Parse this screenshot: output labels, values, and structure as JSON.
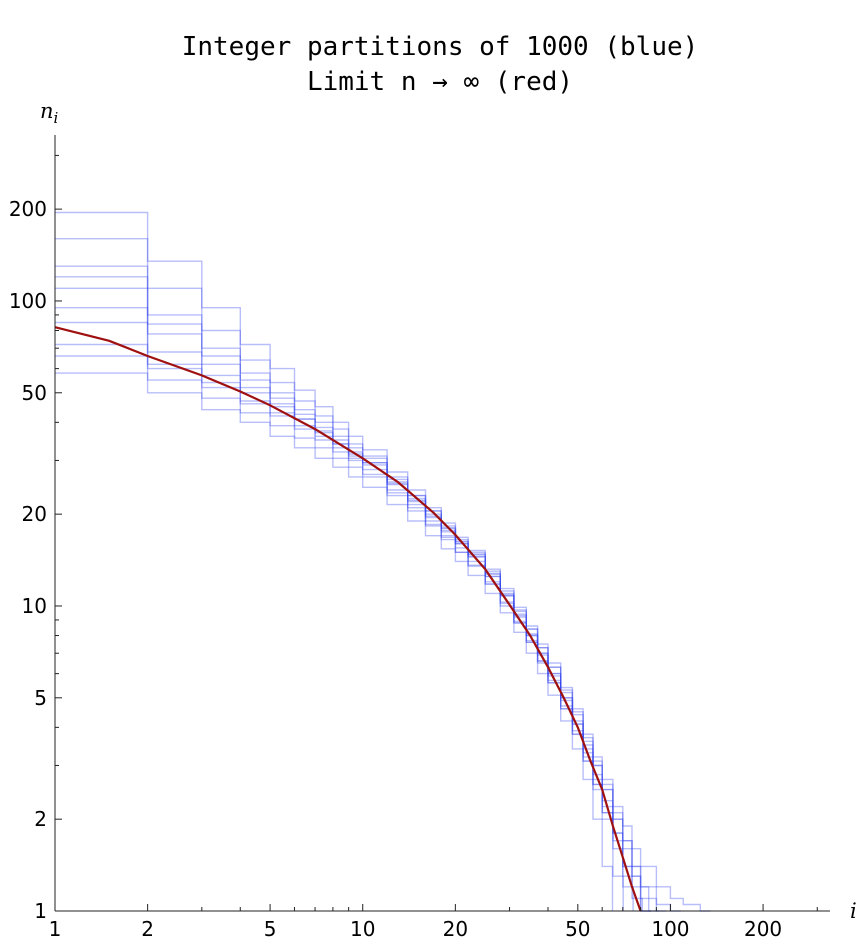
{
  "chart_data": {
    "type": "line",
    "title_lines": [
      "Integer partitions of 1000 (blue)",
      "Limit n → ∞ (red)"
    ],
    "xlabel": "i",
    "ylabel_base": "n",
    "ylabel_sub": "i",
    "x_scale": "log",
    "y_scale": "log",
    "xlim": [
      1,
      330
    ],
    "ylim": [
      1,
      350
    ],
    "x_ticks": [
      1,
      2,
      5,
      10,
      20,
      50,
      100,
      200
    ],
    "x_tick_labels": [
      "1",
      "2",
      "5",
      "10",
      "20",
      "50",
      "100",
      "200"
    ],
    "y_ticks": [
      1,
      2,
      5,
      10,
      20,
      50,
      100,
      200
    ],
    "y_tick_labels": [
      "1",
      "2",
      "5",
      "10",
      "20",
      "50",
      "100",
      "200"
    ],
    "limit_curve": {
      "color": "#a01010",
      "x": [
        1,
        1.5,
        2,
        3,
        4,
        5,
        7,
        10,
        13,
        17,
        20,
        25,
        30,
        35,
        40,
        45,
        50,
        55,
        60,
        65,
        70,
        75,
        80
      ],
      "y": [
        82,
        74,
        66,
        57,
        50.5,
        45.5,
        38,
        30.5,
        25.5,
        20.2,
        17.1,
        13.2,
        10.1,
        8.0,
        6.3,
        5.0,
        4.0,
        3.1,
        2.5,
        1.9,
        1.5,
        1.2,
        1.0
      ]
    },
    "sample_series_color": "#3344ee",
    "sample_series": [
      {
        "x": [
          1,
          2,
          3,
          4,
          5,
          6,
          7,
          8,
          9,
          10,
          12,
          14,
          16,
          18,
          20,
          22,
          25,
          28,
          31,
          34,
          37,
          40,
          44,
          48,
          52,
          56,
          60,
          65,
          70,
          75,
          80,
          85
        ],
        "y": [
          95,
          68,
          57,
          50,
          45,
          41,
          37,
          34,
          31,
          29,
          25,
          22,
          19.5,
          17.5,
          16,
          14.5,
          12.5,
          10.8,
          9.2,
          8,
          7,
          6,
          5,
          4.2,
          3.5,
          3,
          2.5,
          2,
          1.6,
          1.3,
          1.1,
          1
        ]
      },
      {
        "x": [
          1,
          2,
          3,
          4,
          5,
          6,
          7,
          8,
          9,
          10,
          12,
          14,
          16,
          18,
          20,
          22,
          25,
          28,
          31,
          34,
          37,
          40,
          44,
          48,
          52,
          56,
          60,
          65,
          70
        ],
        "y": [
          72,
          60,
          52,
          46,
          42,
          38,
          35,
          32,
          30,
          27,
          23.5,
          21,
          18.5,
          16.8,
          15,
          13.5,
          11.8,
          10,
          8.8,
          7.6,
          6.5,
          5.6,
          4.6,
          3.8,
          3.1,
          2.6,
          2.1,
          1.6,
          1.2
        ]
      },
      {
        "x": [
          1,
          2,
          3,
          4,
          5,
          6,
          7,
          8,
          9,
          10,
          12,
          14,
          16,
          18,
          20,
          22,
          25,
          28,
          31,
          34,
          37,
          40,
          44,
          48,
          52,
          56,
          60,
          65,
          70,
          75,
          80,
          90,
          100
        ],
        "y": [
          160,
          110,
          80,
          64,
          54,
          47,
          42,
          38,
          34,
          31,
          26.5,
          23,
          20.5,
          18,
          16.3,
          14.8,
          12.8,
          11,
          9.6,
          8.4,
          7.3,
          6.3,
          5.3,
          4.5,
          3.7,
          3.1,
          2.6,
          2.1,
          1.7,
          1.4,
          1.2,
          1.05,
          1
        ]
      },
      {
        "x": [
          1,
          2,
          3,
          4,
          5,
          6,
          7,
          8,
          9,
          10,
          12,
          14,
          16,
          18,
          20,
          22,
          25,
          28,
          31,
          34,
          37,
          40,
          44,
          48,
          52,
          56,
          60
        ],
        "y": [
          58,
          50,
          44,
          40,
          36,
          33,
          30.5,
          28.5,
          26.5,
          24.5,
          21.5,
          19,
          17,
          15.4,
          14,
          12.6,
          11,
          9.5,
          8.2,
          7,
          6,
          5.1,
          4.2,
          3.4,
          2.7,
          2,
          1.4
        ]
      },
      {
        "x": [
          1,
          2,
          3,
          4,
          5,
          6,
          7,
          8,
          9,
          10,
          12,
          14,
          16,
          18,
          20,
          22,
          25,
          28,
          31,
          34,
          37,
          40,
          44,
          48,
          52,
          56,
          60,
          65,
          70,
          75,
          80,
          90,
          100,
          110,
          125
        ],
        "y": [
          195,
          135,
          95,
          72,
          60,
          51,
          45,
          40,
          36,
          32.5,
          27.5,
          24,
          21,
          18.7,
          16.8,
          15.2,
          13.2,
          11.4,
          9.9,
          8.6,
          7.5,
          6.5,
          5.4,
          4.6,
          3.8,
          3.2,
          2.7,
          2.2,
          1.9,
          1.6,
          1.4,
          1.2,
          1.1,
          1.05,
          1
        ]
      },
      {
        "x": [
          1,
          2,
          3,
          4,
          5,
          6,
          7,
          8,
          9,
          10,
          12,
          14,
          16,
          18,
          20,
          22,
          25,
          28,
          31,
          34,
          37,
          40,
          44,
          48,
          52,
          56,
          60,
          65,
          70,
          75
        ],
        "y": [
          110,
          78,
          62,
          52,
          46,
          41,
          37.5,
          34,
          31.5,
          29.5,
          25.5,
          22.5,
          20,
          18,
          16.2,
          14.7,
          12.7,
          10.9,
          9.4,
          8.1,
          7,
          6,
          5,
          4.1,
          3.4,
          2.8,
          2.3,
          1.8,
          1.4,
          1.1
        ]
      },
      {
        "x": [
          1,
          2,
          3,
          4,
          5,
          6,
          7,
          8,
          9,
          10,
          12,
          14,
          16,
          18,
          20,
          22,
          25,
          28,
          31,
          34,
          37,
          40,
          44,
          48,
          52,
          56,
          60,
          65
        ],
        "y": [
          85,
          62,
          54,
          47,
          43,
          39,
          36,
          33,
          30.5,
          28,
          24,
          21.5,
          19,
          17,
          15.5,
          14,
          12,
          10.3,
          8.9,
          7.7,
          6.6,
          5.6,
          4.6,
          3.8,
          3.1,
          2.5,
          2,
          1.3
        ]
      },
      {
        "x": [
          1,
          2,
          3,
          4,
          5,
          6,
          7,
          8,
          9,
          10,
          12,
          14,
          16,
          18,
          20,
          22,
          25,
          28,
          31,
          34,
          37,
          40,
          44,
          48,
          52,
          56,
          60,
          65,
          70,
          75,
          80,
          85,
          90
        ],
        "y": [
          130,
          90,
          70,
          58,
          50,
          44,
          40,
          36,
          33,
          30.5,
          26,
          23,
          20.5,
          18.3,
          16.5,
          15,
          13,
          11.2,
          9.7,
          8.4,
          7.3,
          6.3,
          5.2,
          4.4,
          3.6,
          3,
          2.5,
          2,
          1.7,
          1.4,
          1.2,
          1.1,
          1
        ]
      },
      {
        "x": [
          1,
          2,
          3,
          4,
          5,
          6,
          7,
          8,
          9,
          10,
          12,
          14,
          16,
          18,
          20,
          22,
          25,
          28,
          31,
          34,
          37,
          40,
          44,
          48,
          52,
          56,
          60,
          65,
          70,
          80
        ],
        "y": [
          66,
          55,
          48,
          43,
          39,
          35.5,
          33,
          30.5,
          28.5,
          26.5,
          23,
          20.5,
          18.3,
          16.5,
          15,
          13.6,
          11.8,
          10.2,
          8.8,
          7.6,
          6.6,
          5.7,
          4.7,
          3.9,
          3.2,
          2.6,
          2.1,
          1.7,
          1.3,
          1
        ]
      },
      {
        "x": [
          1,
          2,
          3,
          4,
          5,
          6,
          7,
          8,
          9,
          10,
          12,
          14,
          16,
          18,
          20,
          22,
          25,
          28,
          31,
          34,
          37,
          40,
          44,
          48,
          52,
          56,
          60,
          65,
          70,
          75,
          80
        ],
        "y": [
          120,
          84,
          66,
          55,
          48,
          42.5,
          38.5,
          35,
          32,
          29.5,
          25.2,
          22.2,
          19.7,
          17.7,
          16,
          14.5,
          12.5,
          10.8,
          9.3,
          8,
          6.9,
          5.9,
          4.9,
          4.1,
          3.3,
          2.7,
          2.2,
          1.8,
          1.4,
          1.2,
          1
        ]
      }
    ]
  }
}
